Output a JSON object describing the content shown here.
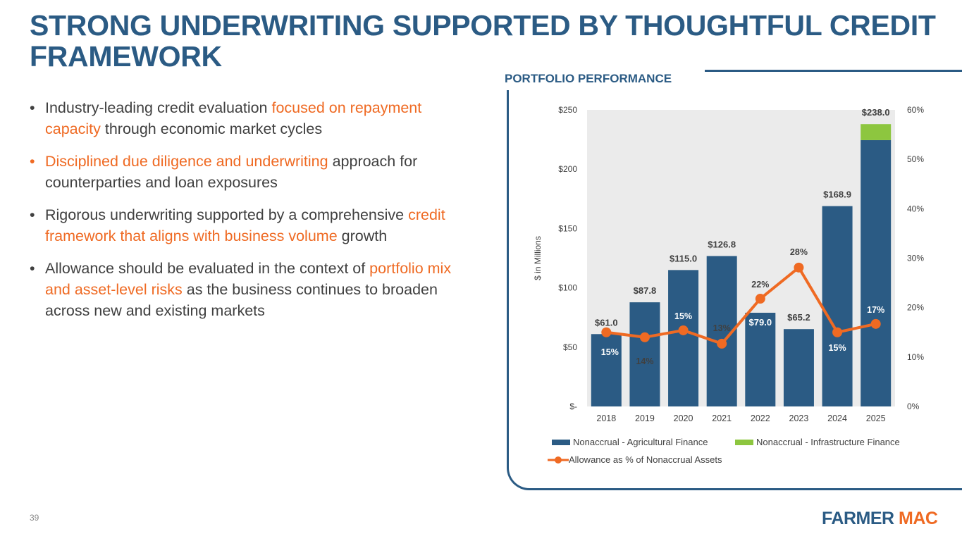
{
  "title": "STRONG UNDERWRITING SUPPORTED BY THOUGHTFUL CREDIT FRAMEWORK",
  "bullets": [
    {
      "parts": [
        {
          "t": "Industry-leading credit evaluation ",
          "hl": false
        },
        {
          "t": "focused on repayment capacity",
          "hl": true
        },
        {
          "t": " through economic market cycles",
          "hl": false
        }
      ]
    },
    {
      "parts": [
        {
          "t": "Disciplined due diligence and underwriting",
          "hl": true
        },
        {
          "t": " approach for counterparties and loan exposures",
          "hl": false
        }
      ],
      "bullet_highlight": true
    },
    {
      "parts": [
        {
          "t": "Rigorous underwriting supported by a comprehensive ",
          "hl": false
        },
        {
          "t": "credit framework that aligns with business volume",
          "hl": true
        },
        {
          "t": " growth",
          "hl": false
        }
      ]
    },
    {
      "parts": [
        {
          "t": "Allowance should be evaluated in the context of ",
          "hl": false
        },
        {
          "t": "portfolio mix and asset-level risks",
          "hl": true
        },
        {
          "t": " as the business continues to broaden across new and existing markets",
          "hl": false
        }
      ]
    }
  ],
  "panel_title": "PORTFOLIO PERFORMANCE",
  "page_number": "39",
  "logo": {
    "part1": "FARMER",
    "part2": "MAC"
  },
  "colors": {
    "brand_blue": "#2b5b84",
    "accent_orange": "#ef6a23",
    "green": "#8dc63f"
  },
  "chart_data": {
    "type": "bar",
    "stacked": true,
    "categories": [
      "2018",
      "2019",
      "2020",
      "2021",
      "2022",
      "2023",
      "2024",
      "2025"
    ],
    "series": [
      {
        "name": "Nonaccrual - Agricultural Finance",
        "type": "bar",
        "axis": "left",
        "color": "#2b5b84",
        "values": [
          61.0,
          87.8,
          115.0,
          126.8,
          79.0,
          65.2,
          168.9,
          224.5
        ]
      },
      {
        "name": "Nonaccrual - Infrastructure Finance",
        "type": "bar",
        "axis": "left",
        "color": "#8dc63f",
        "values": [
          0,
          0,
          0,
          0,
          0,
          0,
          0,
          13.5
        ]
      },
      {
        "name": "Allowance as % of Nonaccrual Assets",
        "type": "line",
        "axis": "right",
        "color": "#ef6a23",
        "values": [
          15.0,
          14.0,
          15.4,
          12.7,
          21.8,
          28.1,
          15.0,
          16.7
        ]
      }
    ],
    "total_labels": [
      "$61.0",
      "$87.8",
      "$115.0",
      "$126.8",
      "$79.0",
      "$65.2",
      "$168.9",
      "$238.0"
    ],
    "pct_labels": [
      "15%",
      "14%",
      "15%",
      "13%",
      "22%",
      "28%",
      "15%",
      "17%"
    ],
    "ylabel": "$ in Millions",
    "ylim": [
      0,
      250
    ],
    "yticks": [
      "$-",
      "$50",
      "$100",
      "$150",
      "$200",
      "$250"
    ],
    "y2lim": [
      0,
      60
    ],
    "y2ticks": [
      "0%",
      "10%",
      "20%",
      "30%",
      "40%",
      "50%",
      "60%"
    ],
    "legend_position": "bottom",
    "grid": false
  }
}
